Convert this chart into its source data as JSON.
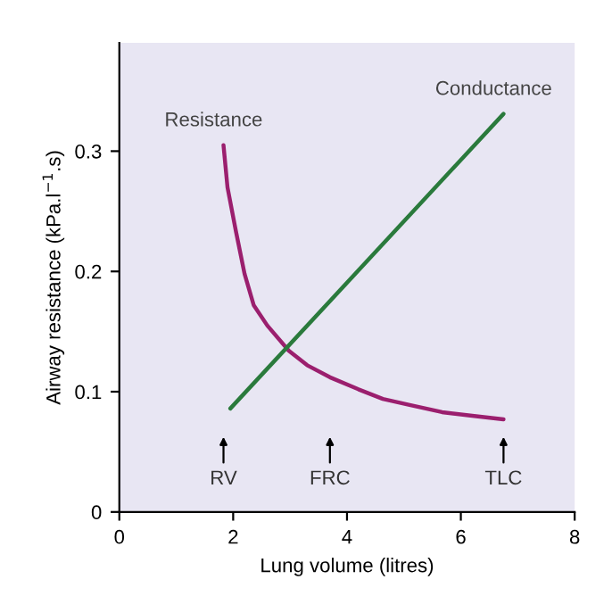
{
  "chart_data": {
    "type": "line",
    "xlabel": "Lung volume (litres)",
    "ylabel": "Airway resistance (kPa.l$^{−1}$.s)",
    "xlim": [
      0,
      8
    ],
    "xticks": [
      0,
      2,
      4,
      6,
      8
    ],
    "ylim": [
      0,
      0.39
    ],
    "yticks": [
      0,
      0.1,
      0.2,
      0.3
    ],
    "grid": false,
    "legend": false,
    "series": [
      {
        "name": "Resistance",
        "color": "#9b1f6e",
        "x": [
          1.83,
          1.9,
          2.05,
          2.2,
          2.36,
          2.6,
          2.98,
          3.3,
          3.7,
          4.2,
          4.63,
          5.1,
          5.67,
          6.2,
          6.75
        ],
        "values": [
          0.305,
          0.27,
          0.233,
          0.198,
          0.172,
          0.155,
          0.134,
          0.122,
          0.112,
          0.102,
          0.094,
          0.089,
          0.083,
          0.08,
          0.077
        ]
      },
      {
        "name": "Conductance",
        "color": "#2a7a3c",
        "x": [
          1.95,
          6.75
        ],
        "values": [
          0.086,
          0.331
        ]
      }
    ],
    "annotations": [
      {
        "text": "RV",
        "x": 1.83
      },
      {
        "text": "FRC",
        "x": 3.7
      },
      {
        "text": "TLC",
        "x": 6.75
      }
    ]
  }
}
